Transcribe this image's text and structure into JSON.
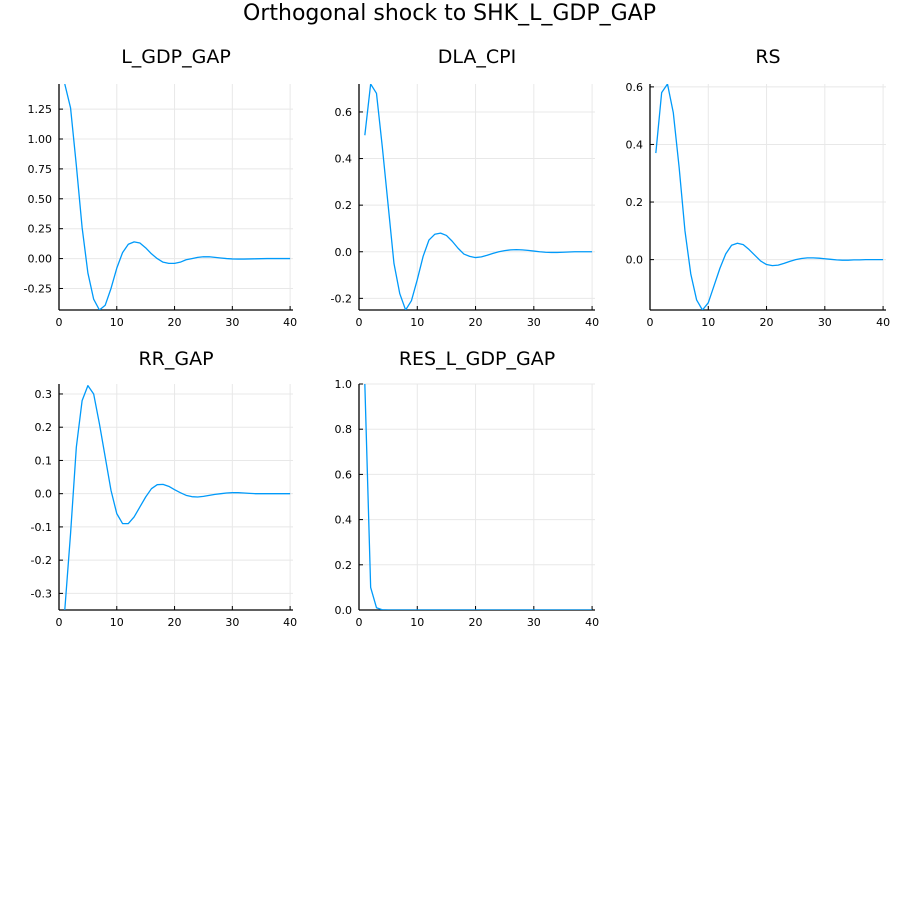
{
  "title": "Orthogonal shock to SHK_L_GDP_GAP",
  "colors": {
    "series": "#009AFA",
    "grid": "#E8E8E8",
    "axis": "#000000"
  },
  "chart_data": [
    {
      "type": "line",
      "title": "L_GDP_GAP",
      "xlim": [
        0,
        40.5
      ],
      "ylim": [
        -0.43,
        1.46
      ],
      "xticks": [
        0,
        10,
        20,
        30,
        40
      ],
      "yticks": [
        -0.25,
        0,
        0.25,
        0.5,
        0.75,
        1.0,
        1.25
      ],
      "ytick_labels": [
        "-0.25",
        "0.00",
        "0.25",
        "0.50",
        "0.75",
        "1.00",
        "1.25"
      ],
      "grid": true,
      "x": [
        1,
        2,
        3,
        4,
        5,
        6,
        7,
        8,
        9,
        10,
        11,
        12,
        13,
        14,
        15,
        16,
        17,
        18,
        19,
        20,
        21,
        22,
        23,
        24,
        25,
        26,
        27,
        28,
        29,
        30,
        31,
        32,
        33,
        34,
        35,
        36,
        37,
        38,
        39,
        40
      ],
      "y": [
        1.46,
        1.26,
        0.78,
        0.26,
        -0.12,
        -0.34,
        -0.43,
        -0.39,
        -0.25,
        -0.08,
        0.05,
        0.12,
        0.14,
        0.13,
        0.09,
        0.04,
        0.0,
        -0.03,
        -0.04,
        -0.04,
        -0.03,
        -0.01,
        0.0,
        0.01,
        0.015,
        0.015,
        0.01,
        0.005,
        0.0,
        -0.003,
        -0.004,
        -0.004,
        -0.003,
        -0.002,
        -0.001,
        0.0,
        0.0,
        0.0,
        0.0,
        0.0
      ]
    },
    {
      "type": "line",
      "title": "DLA_CPI",
      "xlim": [
        0,
        40.5
      ],
      "ylim": [
        -0.25,
        0.72
      ],
      "xticks": [
        0,
        10,
        20,
        30,
        40
      ],
      "yticks": [
        -0.2,
        0,
        0.2,
        0.4,
        0.6
      ],
      "ytick_labels": [
        "-0.2",
        "0.0",
        "0.2",
        "0.4",
        "0.6"
      ],
      "grid": true,
      "x": [
        1,
        2,
        3,
        4,
        5,
        6,
        7,
        8,
        9,
        10,
        11,
        12,
        13,
        14,
        15,
        16,
        17,
        18,
        19,
        20,
        21,
        22,
        23,
        24,
        25,
        26,
        27,
        28,
        29,
        30,
        31,
        32,
        33,
        34,
        35,
        36,
        37,
        38,
        39,
        40
      ],
      "y": [
        0.5,
        0.72,
        0.68,
        0.45,
        0.2,
        -0.05,
        -0.18,
        -0.25,
        -0.21,
        -0.12,
        -0.02,
        0.05,
        0.075,
        0.08,
        0.07,
        0.045,
        0.015,
        -0.01,
        -0.02,
        -0.025,
        -0.022,
        -0.015,
        -0.007,
        0.0,
        0.005,
        0.008,
        0.009,
        0.008,
        0.006,
        0.003,
        0.0,
        -0.002,
        -0.003,
        -0.003,
        -0.002,
        -0.001,
        0.0,
        0.0,
        0.0,
        0.0
      ]
    },
    {
      "type": "line",
      "title": "RS",
      "xlim": [
        0,
        40.5
      ],
      "ylim": [
        -0.175,
        0.61
      ],
      "xticks": [
        0,
        10,
        20,
        30,
        40
      ],
      "yticks": [
        0,
        0.2,
        0.4,
        0.6
      ],
      "ytick_labels": [
        "0.0",
        "0.2",
        "0.4",
        "0.6"
      ],
      "grid": true,
      "x": [
        1,
        2,
        3,
        4,
        5,
        6,
        7,
        8,
        9,
        10,
        11,
        12,
        13,
        14,
        15,
        16,
        17,
        18,
        19,
        20,
        21,
        22,
        23,
        24,
        25,
        26,
        27,
        28,
        29,
        30,
        31,
        32,
        33,
        34,
        35,
        36,
        37,
        38,
        39,
        40
      ],
      "y": [
        0.37,
        0.58,
        0.61,
        0.51,
        0.32,
        0.1,
        -0.05,
        -0.14,
        -0.175,
        -0.15,
        -0.09,
        -0.03,
        0.02,
        0.05,
        0.057,
        0.052,
        0.035,
        0.015,
        -0.005,
        -0.017,
        -0.021,
        -0.019,
        -0.013,
        -0.006,
        0.0,
        0.004,
        0.006,
        0.006,
        0.005,
        0.003,
        0.001,
        -0.001,
        -0.002,
        -0.002,
        -0.001,
        -0.001,
        0.0,
        0.0,
        0.0,
        0.0
      ]
    },
    {
      "type": "line",
      "title": "RR_GAP",
      "xlim": [
        0,
        40.5
      ],
      "ylim": [
        -0.35,
        0.33
      ],
      "xticks": [
        0,
        10,
        20,
        30,
        40
      ],
      "yticks": [
        -0.3,
        -0.2,
        -0.1,
        0,
        0.1,
        0.2,
        0.3
      ],
      "ytick_labels": [
        "-0.3",
        "-0.2",
        "-0.1",
        "0.0",
        "0.1",
        "0.2",
        "0.3"
      ],
      "grid": true,
      "x": [
        1,
        2,
        3,
        4,
        5,
        6,
        7,
        8,
        9,
        10,
        11,
        12,
        13,
        14,
        15,
        16,
        17,
        18,
        19,
        20,
        21,
        22,
        23,
        24,
        25,
        26,
        27,
        28,
        29,
        30,
        31,
        32,
        33,
        34,
        35,
        36,
        37,
        38,
        39,
        40
      ],
      "y": [
        -0.35,
        -0.12,
        0.14,
        0.28,
        0.325,
        0.3,
        0.21,
        0.11,
        0.01,
        -0.06,
        -0.09,
        -0.09,
        -0.07,
        -0.04,
        -0.01,
        0.015,
        0.027,
        0.028,
        0.022,
        0.012,
        0.003,
        -0.005,
        -0.009,
        -0.01,
        -0.008,
        -0.005,
        -0.002,
        0.0,
        0.002,
        0.003,
        0.003,
        0.002,
        0.001,
        0.0,
        0.0,
        0.0,
        0.0,
        0.0,
        0.0,
        0.0
      ]
    },
    {
      "type": "line",
      "title": "RES_L_GDP_GAP",
      "xlim": [
        0,
        40.5
      ],
      "ylim": [
        0,
        1.0
      ],
      "xticks": [
        0,
        10,
        20,
        30,
        40
      ],
      "yticks": [
        0,
        0.2,
        0.4,
        0.6,
        0.8,
        1.0
      ],
      "ytick_labels": [
        "0.0",
        "0.2",
        "0.4",
        "0.6",
        "0.8",
        "1.0"
      ],
      "grid": true,
      "x": [
        1,
        2,
        3,
        4,
        5,
        6,
        7,
        8,
        9,
        10,
        11,
        12,
        13,
        14,
        15,
        16,
        17,
        18,
        19,
        20,
        21,
        22,
        23,
        24,
        25,
        26,
        27,
        28,
        29,
        30,
        31,
        32,
        33,
        34,
        35,
        36,
        37,
        38,
        39,
        40
      ],
      "y": [
        1.0,
        0.1,
        0.01,
        0.001,
        0,
        0,
        0,
        0,
        0,
        0,
        0,
        0,
        0,
        0,
        0,
        0,
        0,
        0,
        0,
        0,
        0,
        0,
        0,
        0,
        0,
        0,
        0,
        0,
        0,
        0,
        0,
        0,
        0,
        0,
        0,
        0,
        0,
        0,
        0,
        0
      ]
    }
  ]
}
